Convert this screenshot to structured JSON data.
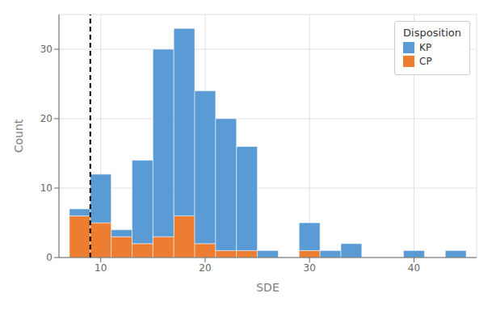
{
  "chart_data": {
    "type": "histogram",
    "xlabel": "SDE",
    "ylabel": "Count",
    "legend_title": "Disposition",
    "bins": [
      7,
      9,
      11,
      13,
      15,
      17,
      19,
      21,
      23,
      25,
      27,
      29,
      31,
      33,
      35,
      37,
      39,
      41,
      43,
      45
    ],
    "series": [
      {
        "name": "CP",
        "color": "#ED7D31",
        "values": [
          6,
          5,
          3,
          2,
          3,
          6,
          2,
          1,
          1,
          0,
          0,
          1,
          0,
          0,
          0,
          0,
          0,
          0,
          0
        ]
      },
      {
        "name": "KP",
        "color": "#5B9BD5",
        "values": [
          1,
          7,
          1,
          12,
          27,
          27,
          22,
          19,
          15,
          1,
          0,
          4,
          1,
          2,
          0,
          0,
          1,
          0,
          1
        ]
      }
    ],
    "stacked": true,
    "xlim": [
      6,
      46
    ],
    "ylim": [
      0,
      35
    ],
    "xticks": [
      10,
      20,
      30,
      40
    ],
    "yticks": [
      0,
      10,
      20,
      30
    ],
    "grid": true,
    "legend": "upper right",
    "reference_lines": [
      {
        "x": 9,
        "line_style": "dashed",
        "color": "#000000"
      }
    ]
  }
}
